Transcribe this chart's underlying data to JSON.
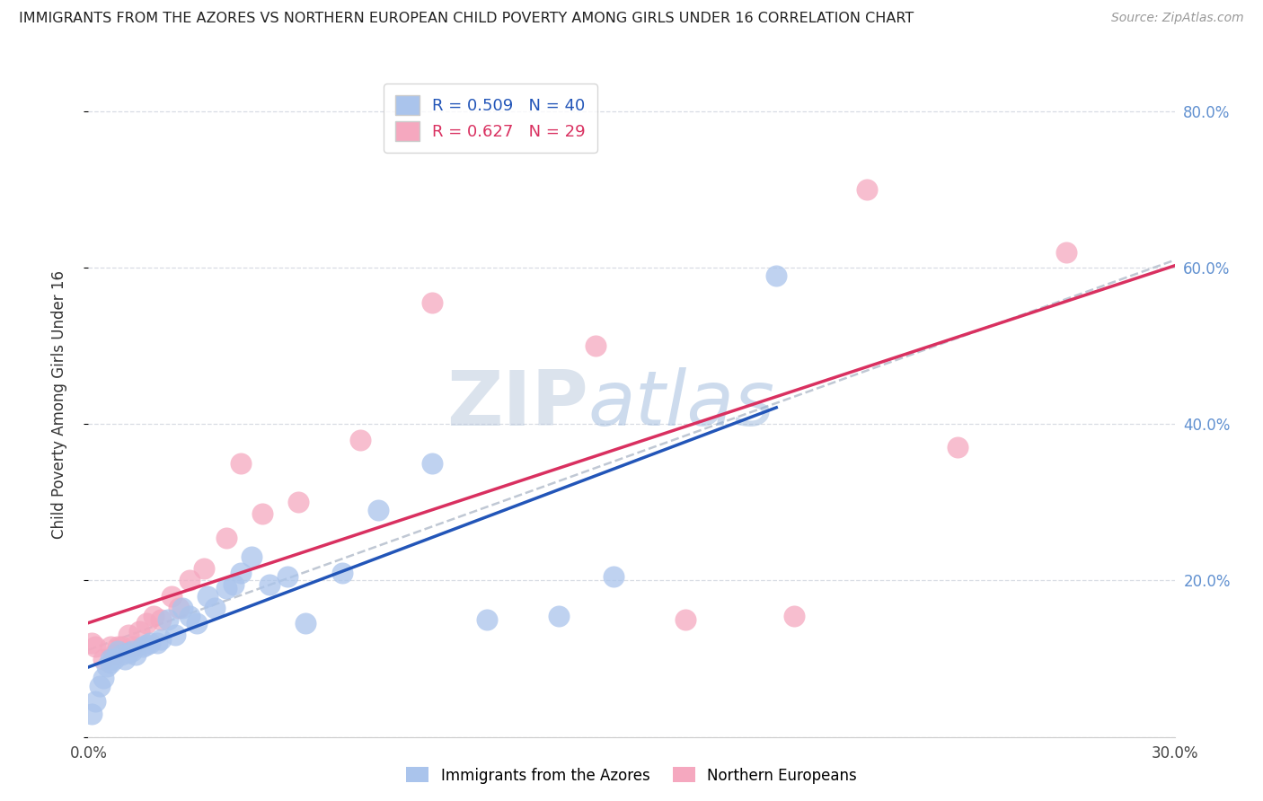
{
  "title": "IMMIGRANTS FROM THE AZORES VS NORTHERN EUROPEAN CHILD POVERTY AMONG GIRLS UNDER 16 CORRELATION CHART",
  "source": "Source: ZipAtlas.com",
  "ylabel": "Child Poverty Among Girls Under 16",
  "xlim": [
    0.0,
    0.3
  ],
  "ylim": [
    0.0,
    0.85
  ],
  "azores_R": 0.509,
  "azores_N": 40,
  "northern_R": 0.627,
  "northern_N": 29,
  "azores_color": "#aac4ec",
  "northern_color": "#f5a8bf",
  "azores_line_color": "#2255b8",
  "northern_line_color": "#d93060",
  "trendline_color": "#c0c8d4",
  "legend_label_azores": "Immigrants from the Azores",
  "legend_label_northern": "Northern Europeans",
  "azores_x": [
    0.001,
    0.002,
    0.003,
    0.004,
    0.005,
    0.006,
    0.006,
    0.007,
    0.008,
    0.009,
    0.01,
    0.011,
    0.012,
    0.013,
    0.015,
    0.016,
    0.017,
    0.019,
    0.02,
    0.022,
    0.024,
    0.026,
    0.028,
    0.03,
    0.033,
    0.035,
    0.038,
    0.04,
    0.042,
    0.045,
    0.05,
    0.055,
    0.06,
    0.07,
    0.08,
    0.095,
    0.11,
    0.13,
    0.145,
    0.19
  ],
  "azores_y": [
    0.03,
    0.045,
    0.065,
    0.075,
    0.09,
    0.095,
    0.1,
    0.1,
    0.11,
    0.105,
    0.1,
    0.108,
    0.11,
    0.105,
    0.115,
    0.118,
    0.12,
    0.12,
    0.125,
    0.15,
    0.13,
    0.165,
    0.155,
    0.145,
    0.18,
    0.165,
    0.19,
    0.195,
    0.21,
    0.23,
    0.195,
    0.205,
    0.145,
    0.21,
    0.29,
    0.35,
    0.15,
    0.155,
    0.205,
    0.59
  ],
  "northern_x": [
    0.001,
    0.002,
    0.004,
    0.006,
    0.007,
    0.008,
    0.009,
    0.011,
    0.012,
    0.014,
    0.016,
    0.018,
    0.02,
    0.023,
    0.025,
    0.028,
    0.032,
    0.038,
    0.042,
    0.048,
    0.058,
    0.075,
    0.095,
    0.14,
    0.165,
    0.195,
    0.215,
    0.24,
    0.27
  ],
  "northern_y": [
    0.12,
    0.115,
    0.1,
    0.115,
    0.105,
    0.115,
    0.115,
    0.13,
    0.115,
    0.135,
    0.145,
    0.155,
    0.15,
    0.18,
    0.165,
    0.2,
    0.215,
    0.255,
    0.35,
    0.285,
    0.3,
    0.38,
    0.555,
    0.5,
    0.15,
    0.155,
    0.7,
    0.37,
    0.62
  ],
  "watermark_zip": "ZIP",
  "watermark_atlas": "atlas",
  "background_color": "#ffffff",
  "grid_color": "#d8dce4",
  "right_axis_color": "#6090d0",
  "ytick_right_labels": [
    "20.0%",
    "40.0%",
    "60.0%",
    "80.0%"
  ],
  "ytick_right_positions": [
    0.2,
    0.4,
    0.6,
    0.8
  ]
}
